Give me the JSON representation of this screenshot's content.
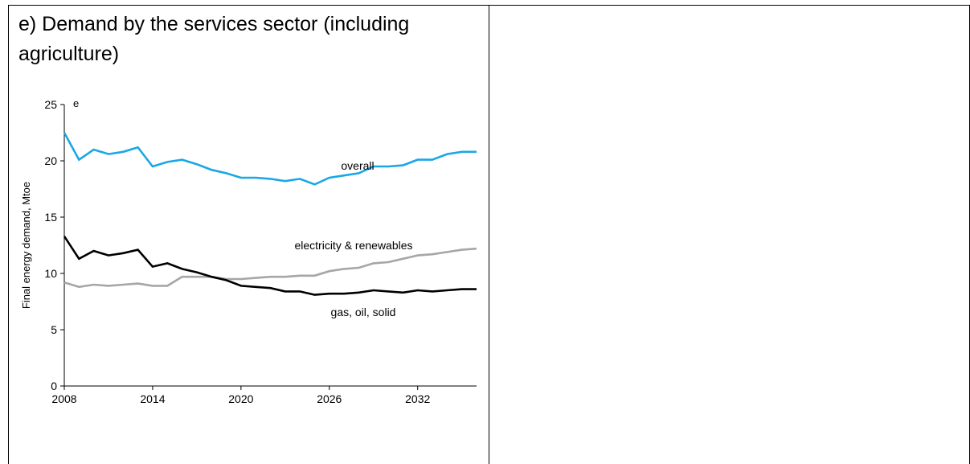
{
  "panel": {
    "title": "e) Demand by the services sector (including agriculture)"
  },
  "chart_data": {
    "type": "line",
    "title": "e) Demand by the services sector (including agriculture)",
    "ylabel": "Final energy demand, Mtoe",
    "xlabel": "",
    "corner_label": "e",
    "xlim": [
      2008,
      2036
    ],
    "ylim": [
      0,
      25
    ],
    "x_ticks": [
      "2008",
      "2014",
      "2020",
      "2026",
      "2032"
    ],
    "y_ticks": [
      "0",
      "5",
      "10",
      "15",
      "20",
      "25"
    ],
    "grid": false,
    "legend": "inline labels",
    "x": [
      2008,
      2009,
      2010,
      2011,
      2012,
      2013,
      2014,
      2015,
      2016,
      2017,
      2018,
      2019,
      2020,
      2021,
      2022,
      2023,
      2024,
      2025,
      2026,
      2027,
      2028,
      2029,
      2030,
      2031,
      2032,
      2033,
      2034,
      2035,
      2036
    ],
    "series": [
      {
        "name": "overall",
        "color": "#1aa7e6",
        "values": [
          22.5,
          20.1,
          21.0,
          20.6,
          20.8,
          21.2,
          19.5,
          19.9,
          20.1,
          19.7,
          19.2,
          18.9,
          18.5,
          18.5,
          18.4,
          18.2,
          18.4,
          17.9,
          18.5,
          18.7,
          18.9,
          19.5,
          19.5,
          19.6,
          20.1,
          20.1,
          20.6,
          20.8,
          20.8
        ]
      },
      {
        "name": "electricity & renewables",
        "color": "#a6a6a6",
        "values": [
          9.2,
          8.8,
          9.0,
          8.9,
          9.0,
          9.1,
          8.9,
          8.9,
          9.7,
          9.7,
          9.7,
          9.5,
          9.5,
          9.6,
          9.7,
          9.7,
          9.8,
          9.8,
          10.2,
          10.4,
          10.5,
          10.9,
          11.0,
          11.3,
          11.6,
          11.7,
          11.9,
          12.1,
          12.2
        ]
      },
      {
        "name": "gas, oil, solid",
        "color": "#000000",
        "values": [
          13.3,
          11.3,
          12.0,
          11.6,
          11.8,
          12.1,
          10.6,
          10.9,
          10.4,
          10.1,
          9.7,
          9.4,
          8.9,
          8.8,
          8.7,
          8.4,
          8.4,
          8.1,
          8.2,
          8.2,
          8.3,
          8.5,
          8.4,
          8.3,
          8.5,
          8.4,
          8.5,
          8.6,
          8.6
        ]
      }
    ]
  }
}
